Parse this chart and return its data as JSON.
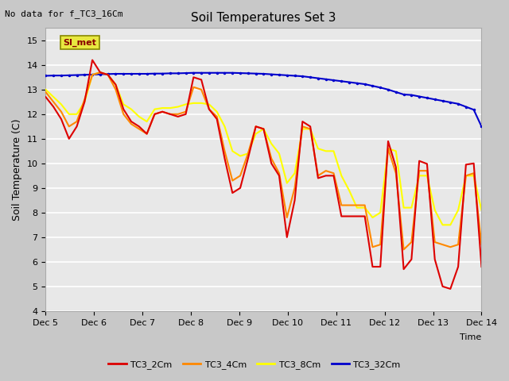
{
  "title": "Soil Temperatures Set 3",
  "xlabel": "Time",
  "ylabel": "Soil Temperature (C)",
  "top_left_note": "No data for f_TC3_16Cm",
  "annotation_label": "SI_met",
  "ylim": [
    4.0,
    15.5
  ],
  "yticks": [
    4.0,
    5.0,
    6.0,
    7.0,
    8.0,
    9.0,
    10.0,
    11.0,
    12.0,
    13.0,
    14.0,
    15.0
  ],
  "xtick_labels": [
    "Dec 5",
    "Dec 6",
    "Dec 7",
    "Dec 8",
    "Dec 9",
    "Dec 10",
    "Dec 11",
    "Dec 12",
    "Dec 13",
    "Dec 14"
  ],
  "fig_bg_color": "#c8c8c8",
  "plot_bg_color": "#e8e8e8",
  "line_colors": {
    "TC3_2Cm": "#dd0000",
    "TC3_4Cm": "#ff8800",
    "TC3_8Cm": "#ffff00",
    "TC3_32Cm": "#0000cc"
  },
  "legend_labels": [
    "TC3_2Cm",
    "TC3_4Cm",
    "TC3_8Cm",
    "TC3_32Cm"
  ],
  "TC3_2Cm": [
    12.7,
    12.3,
    11.8,
    11.0,
    11.5,
    12.5,
    14.2,
    13.7,
    13.6,
    13.2,
    12.2,
    11.7,
    11.5,
    11.2,
    12.0,
    12.1,
    12.0,
    11.9,
    12.0,
    13.5,
    13.4,
    12.2,
    11.8,
    10.2,
    8.8,
    9.0,
    10.2,
    11.5,
    11.4,
    10.0,
    9.5,
    7.0,
    8.5,
    11.7,
    11.5,
    9.4,
    9.5,
    9.5,
    7.85,
    7.85,
    7.85,
    7.85,
    5.8,
    5.8,
    10.9,
    9.85,
    5.7,
    6.1,
    10.1,
    9.98,
    6.1,
    5.0,
    4.9,
    5.8,
    9.95,
    10.0,
    5.8
  ],
  "TC3_4Cm": [
    12.9,
    12.5,
    12.1,
    11.5,
    11.7,
    12.6,
    13.6,
    13.7,
    13.6,
    13.0,
    12.0,
    11.6,
    11.4,
    11.2,
    12.0,
    12.1,
    12.0,
    12.0,
    12.1,
    13.1,
    13.0,
    12.2,
    11.9,
    10.5,
    9.3,
    9.5,
    10.4,
    11.5,
    11.4,
    10.2,
    9.6,
    7.8,
    9.0,
    11.5,
    11.4,
    9.5,
    9.7,
    9.6,
    8.3,
    8.3,
    8.3,
    8.3,
    6.6,
    6.7,
    10.6,
    9.6,
    6.5,
    6.8,
    9.7,
    9.7,
    6.8,
    6.7,
    6.6,
    6.7,
    9.5,
    9.6,
    6.7
  ],
  "TC3_8Cm": [
    13.0,
    12.7,
    12.4,
    12.0,
    12.0,
    12.5,
    13.6,
    13.7,
    13.6,
    13.2,
    12.4,
    12.2,
    11.9,
    11.7,
    12.2,
    12.25,
    12.25,
    12.3,
    12.4,
    12.45,
    12.45,
    12.4,
    12.1,
    11.5,
    10.5,
    10.3,
    10.4,
    11.2,
    11.4,
    10.8,
    10.4,
    9.2,
    9.6,
    11.4,
    11.4,
    10.6,
    10.5,
    10.5,
    9.5,
    8.9,
    8.2,
    8.2,
    7.8,
    8.0,
    10.6,
    10.5,
    8.2,
    8.2,
    9.5,
    9.5,
    8.1,
    7.5,
    7.5,
    8.1,
    9.5,
    9.5,
    8.1
  ],
  "TC3_32Cm": [
    13.56,
    13.57,
    13.57,
    13.58,
    13.59,
    13.6,
    13.61,
    13.62,
    13.63,
    13.64,
    13.64,
    13.64,
    13.64,
    13.64,
    13.65,
    13.65,
    13.66,
    13.66,
    13.67,
    13.68,
    13.68,
    13.68,
    13.68,
    13.68,
    13.68,
    13.67,
    13.66,
    13.65,
    13.64,
    13.62,
    13.6,
    13.58,
    13.56,
    13.54,
    13.5,
    13.46,
    13.42,
    13.38,
    13.34,
    13.3,
    13.26,
    13.22,
    13.15,
    13.08,
    13.0,
    12.9,
    12.8,
    12.78,
    12.72,
    12.66,
    12.6,
    12.54,
    12.48,
    12.42,
    12.3,
    12.18,
    11.5
  ]
}
